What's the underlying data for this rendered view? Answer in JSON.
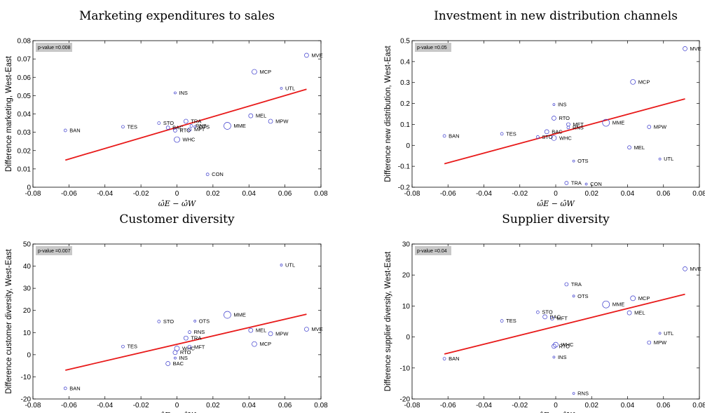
{
  "chart_data": [
    {
      "type": "scatter",
      "title": "Marketing expenditures to sales",
      "ylabel": "Difference marketing, West-East",
      "xlabel": "ω̂E − ω̂W",
      "annotation": "p-value =0.008",
      "xlim": [
        -0.08,
        0.08
      ],
      "ylim": [
        0,
        0.08
      ],
      "xticks": [
        "-0.08",
        "-0.06",
        "-0.04",
        "-0.02",
        "0",
        "0.02",
        "0.04",
        "0.06",
        "0.08"
      ],
      "yticks": [
        "0",
        "0.01",
        "0.02",
        "0.03",
        "0.04",
        "0.05",
        "0.06",
        "0.07",
        "0.08"
      ],
      "fit_line": {
        "x": [
          -0.062,
          0.072
        ],
        "y": [
          0.0148,
          0.0535
        ]
      },
      "points": [
        {
          "label": "BAN",
          "x": -0.062,
          "y": 0.031,
          "size": 2
        },
        {
          "label": "TES",
          "x": -0.03,
          "y": 0.033,
          "size": 2
        },
        {
          "label": "STO",
          "x": -0.01,
          "y": 0.035,
          "size": 2
        },
        {
          "label": "BAC",
          "x": -0.005,
          "y": 0.0325,
          "size": 2.5
        },
        {
          "label": "RTO",
          "x": -0.001,
          "y": 0.031,
          "size": 2.5
        },
        {
          "label": "INS",
          "x": -0.001,
          "y": 0.0515,
          "size": 1.5
        },
        {
          "label": "TRA",
          "x": 0.005,
          "y": 0.036,
          "size": 3
        },
        {
          "label": "RNS",
          "x": 0.008,
          "y": 0.0335,
          "size": 2
        },
        {
          "label": "OTS",
          "x": 0.01,
          "y": 0.033,
          "size": 1.5
        },
        {
          "label": "MFT",
          "x": 0.007,
          "y": 0.0315,
          "size": 2.5
        },
        {
          "label": "WHC",
          "x": 0.0,
          "y": 0.026,
          "size": 4
        },
        {
          "label": "MME",
          "x": 0.028,
          "y": 0.0335,
          "size": 5
        },
        {
          "label": "CON",
          "x": 0.017,
          "y": 0.007,
          "size": 2
        },
        {
          "label": "MEL",
          "x": 0.041,
          "y": 0.039,
          "size": 3
        },
        {
          "label": "MCP",
          "x": 0.043,
          "y": 0.063,
          "size": 3.5
        },
        {
          "label": "MPW",
          "x": 0.052,
          "y": 0.036,
          "size": 3
        },
        {
          "label": "UTL",
          "x": 0.058,
          "y": 0.054,
          "size": 1.5
        },
        {
          "label": "MVE",
          "x": 0.072,
          "y": 0.072,
          "size": 3
        }
      ]
    },
    {
      "type": "scatter",
      "title": "Investment in new distribution channels",
      "ylabel": "Difference new distribution, West-East",
      "xlabel": "ω̂E − ω̂W",
      "annotation": "p-value =0.05",
      "xlim": [
        -0.08,
        0.08
      ],
      "ylim": [
        -0.2,
        0.5
      ],
      "xticks": [
        "-0.08",
        "-0.06",
        "-0.04",
        "-0.02",
        "0",
        "0.02",
        "0.04",
        "0.06",
        "0.08"
      ],
      "yticks": [
        "-0.2",
        "-0.1",
        "0",
        "0.1",
        "0.2",
        "0.3",
        "0.4",
        "0.5"
      ],
      "fit_line": {
        "x": [
          -0.062,
          0.072
        ],
        "y": [
          -0.088,
          0.222
        ]
      },
      "points": [
        {
          "label": "BAN",
          "x": -0.062,
          "y": 0.045,
          "size": 2
        },
        {
          "label": "TES",
          "x": -0.03,
          "y": 0.055,
          "size": 2
        },
        {
          "label": "STO",
          "x": -0.01,
          "y": 0.04,
          "size": 2
        },
        {
          "label": "BAC",
          "x": -0.005,
          "y": 0.065,
          "size": 3
        },
        {
          "label": "WHC",
          "x": -0.001,
          "y": 0.035,
          "size": 3.5
        },
        {
          "label": "RTO",
          "x": -0.001,
          "y": 0.13,
          "size": 3
        },
        {
          "label": "INS",
          "x": -0.001,
          "y": 0.195,
          "size": 1.5
        },
        {
          "label": "MFT",
          "x": 0.007,
          "y": 0.1,
          "size": 2.5
        },
        {
          "label": "RNS",
          "x": 0.007,
          "y": 0.085,
          "size": 2
        },
        {
          "label": "OTS",
          "x": 0.01,
          "y": -0.075,
          "size": 1.5
        },
        {
          "label": "TRA",
          "x": 0.006,
          "y": -0.18,
          "size": 2.5
        },
        {
          "label": "CON",
          "x": 0.017,
          "y": -0.185,
          "size": 1.5
        },
        {
          "label": "MME",
          "x": 0.028,
          "y": 0.108,
          "size": 5
        },
        {
          "label": "MEL",
          "x": 0.041,
          "y": -0.01,
          "size": 2.5
        },
        {
          "label": "MCP",
          "x": 0.043,
          "y": 0.303,
          "size": 3.5
        },
        {
          "label": "MPW",
          "x": 0.052,
          "y": 0.088,
          "size": 2.5
        },
        {
          "label": "UTL",
          "x": 0.058,
          "y": -0.065,
          "size": 1.5
        },
        {
          "label": "MVE",
          "x": 0.072,
          "y": 0.462,
          "size": 3
        }
      ]
    },
    {
      "type": "scatter",
      "title": "Customer diversity",
      "ylabel": "Difference customer diversity, West-East",
      "xlabel": "ω̂E − ω̂W",
      "annotation": "p-value =0.007",
      "xlim": [
        -0.08,
        0.08
      ],
      "ylim": [
        -20,
        50
      ],
      "xticks": [
        "-0.08",
        "-0.06",
        "-0.04",
        "-0.02",
        "0",
        "0.02",
        "0.04",
        "0.06",
        "0.08"
      ],
      "yticks": [
        "-20",
        "-10",
        "0",
        "10",
        "20",
        "30",
        "40",
        "50"
      ],
      "fit_line": {
        "x": [
          -0.062,
          0.072
        ],
        "y": [
          -7.0,
          18.3
        ]
      },
      "points": [
        {
          "label": "BAN",
          "x": -0.062,
          "y": -15.2,
          "size": 2
        },
        {
          "label": "TES",
          "x": -0.03,
          "y": 3.7,
          "size": 2
        },
        {
          "label": "STO",
          "x": -0.01,
          "y": 15.0,
          "size": 2
        },
        {
          "label": "BAC",
          "x": -0.005,
          "y": -4.0,
          "size": 3
        },
        {
          "label": "INS",
          "x": -0.001,
          "y": -1.5,
          "size": 1.5
        },
        {
          "label": "RTO",
          "x": -0.001,
          "y": 1.0,
          "size": 3
        },
        {
          "label": "WHC",
          "x": 0.0,
          "y": 2.8,
          "size": 3.5
        },
        {
          "label": "MFT",
          "x": 0.007,
          "y": 3.5,
          "size": 2.5
        },
        {
          "label": "TRA",
          "x": 0.005,
          "y": 7.5,
          "size": 3
        },
        {
          "label": "RNS",
          "x": 0.007,
          "y": 10.2,
          "size": 2
        },
        {
          "label": "OTS",
          "x": 0.01,
          "y": 15.2,
          "size": 1.5
        },
        {
          "label": "MME",
          "x": 0.028,
          "y": 18.0,
          "size": 5
        },
        {
          "label": "MEL",
          "x": 0.041,
          "y": 11.0,
          "size": 3
        },
        {
          "label": "MCP",
          "x": 0.043,
          "y": 4.8,
          "size": 3.5
        },
        {
          "label": "MPW",
          "x": 0.052,
          "y": 9.5,
          "size": 3
        },
        {
          "label": "UTL",
          "x": 0.058,
          "y": 40.5,
          "size": 1.5
        },
        {
          "label": "MVE",
          "x": 0.072,
          "y": 11.5,
          "size": 3
        }
      ]
    },
    {
      "type": "scatter",
      "title": "Supplier diversity",
      "ylabel": "Difference supplier diversity, West-East",
      "xlabel": "ω̂E − ω̂W",
      "annotation": "p-value =0.04",
      "xlim": [
        -0.08,
        0.08
      ],
      "ylim": [
        -20,
        30
      ],
      "xticks": [
        "-0.08",
        "-0.06",
        "-0.04",
        "-0.02",
        "0",
        "0.02",
        "0.04",
        "0.06",
        "0.08"
      ],
      "yticks": [
        "-20",
        "-10",
        "0",
        "10",
        "20",
        "30"
      ],
      "fit_line": {
        "x": [
          -0.062,
          0.072
        ],
        "y": [
          -5.5,
          13.8
        ]
      },
      "points": [
        {
          "label": "BAN",
          "x": -0.062,
          "y": -7.0,
          "size": 2
        },
        {
          "label": "TES",
          "x": -0.03,
          "y": 5.2,
          "size": 2
        },
        {
          "label": "STO",
          "x": -0.01,
          "y": 8.0,
          "size": 2
        },
        {
          "label": "BAC",
          "x": -0.006,
          "y": 6.5,
          "size": 3
        },
        {
          "label": "MFT",
          "x": -0.002,
          "y": 6.0,
          "size": 2.5
        },
        {
          "label": "RTO",
          "x": -0.001,
          "y": -3.0,
          "size": 3
        },
        {
          "label": "WHC",
          "x": 0.0,
          "y": -2.5,
          "size": 3.5
        },
        {
          "label": "INS",
          "x": -0.001,
          "y": -6.5,
          "size": 1.5
        },
        {
          "label": "TRA",
          "x": 0.006,
          "y": 17.0,
          "size": 2.5
        },
        {
          "label": "OTS",
          "x": 0.01,
          "y": 13.2,
          "size": 1.5
        },
        {
          "label": "RNS",
          "x": 0.01,
          "y": -18.2,
          "size": 1.5
        },
        {
          "label": "MME",
          "x": 0.028,
          "y": 10.5,
          "size": 5
        },
        {
          "label": "MCP",
          "x": 0.043,
          "y": 12.5,
          "size": 3.5
        },
        {
          "label": "MEL",
          "x": 0.041,
          "y": 7.8,
          "size": 3
        },
        {
          "label": "MPW",
          "x": 0.052,
          "y": -1.8,
          "size": 2.5
        },
        {
          "label": "UTL",
          "x": 0.058,
          "y": 1.2,
          "size": 1.5
        },
        {
          "label": "MVE",
          "x": 0.072,
          "y": 22.0,
          "size": 3
        }
      ]
    }
  ],
  "colors": {
    "marker": "#3a3acc",
    "fit": "#e81a1a",
    "annotation_bg": "#c8c8c8"
  }
}
